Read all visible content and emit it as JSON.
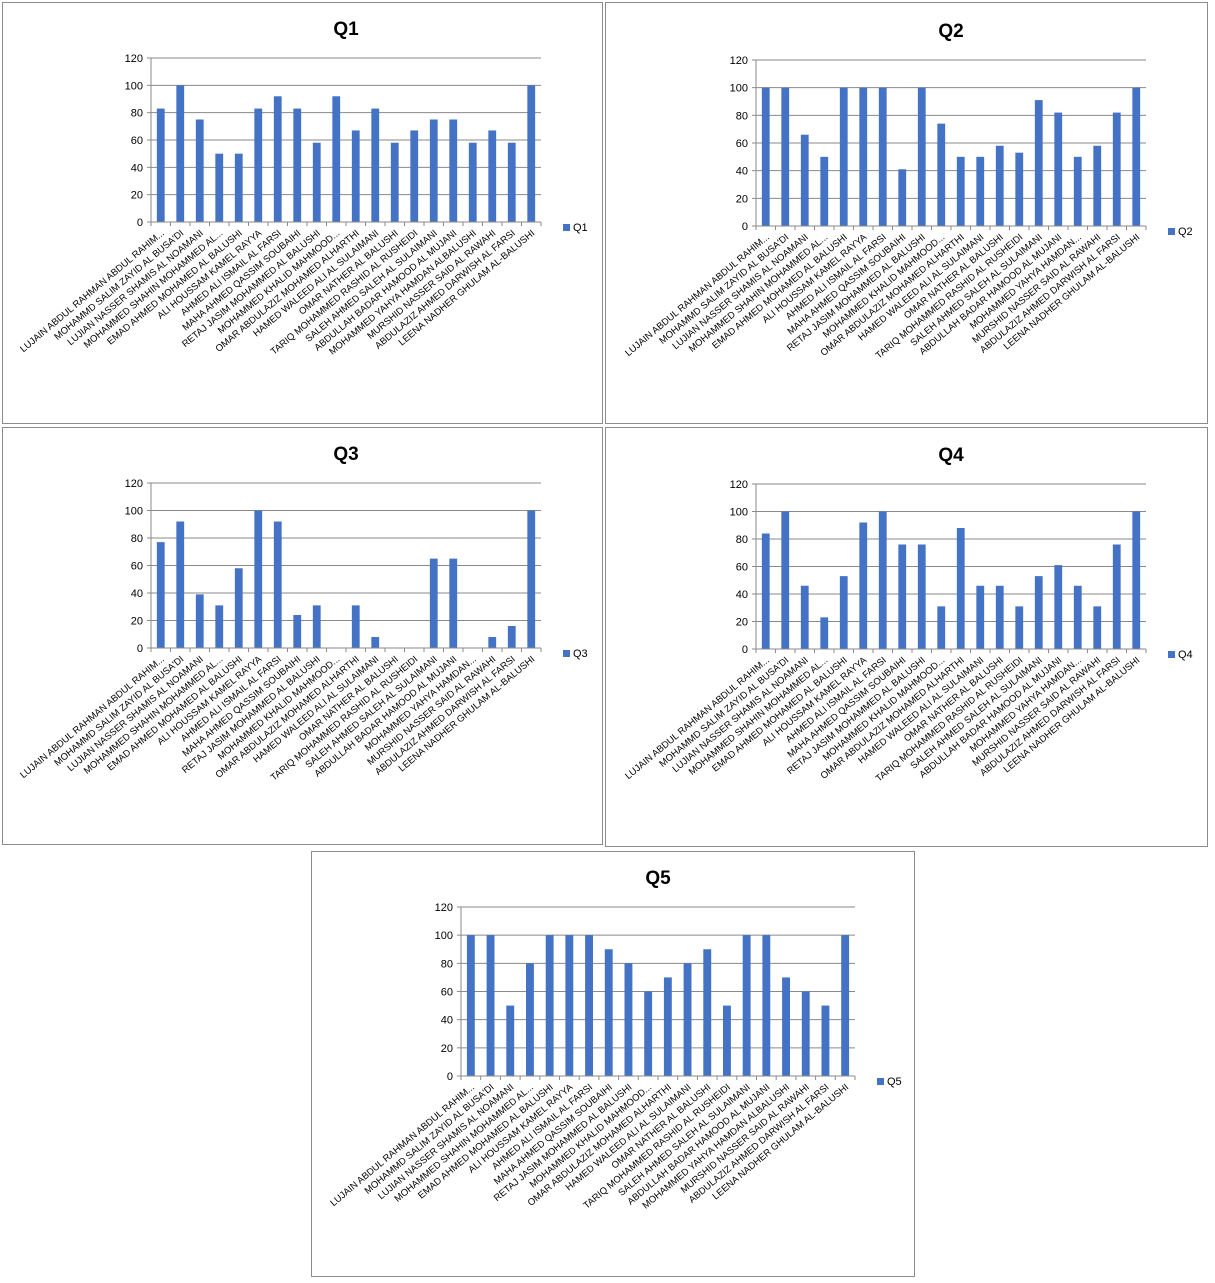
{
  "chart_data": [
    {
      "type": "bar",
      "title": "Q1",
      "categories": [
        "LUJAIN ABDUL RAHMAN ABDUL RAHIM...",
        "MOHAMMD SALIM ZAYID AL BUSA'DI",
        "LUJIAN NASSER SHAMIS AL NOAMANI",
        "MOHAMMED SHAHIN MOHAMMED AL...",
        "EMAD AHMED MOHAMED AL BALUSHI",
        "ALI HOUSSAM KAMEL RAYYA",
        "AHMED ALI ISMAIL AL FARSI",
        "MAHA AHMED QASSIM SOUBAIHI",
        "RETAJ JASIM MOHAMMED AL BALUSHI",
        "MOHAMMED KHALID MAHMOOD...",
        "OMAR ABDULAZIZ MOHAMED ALHARTHI",
        "HAMED WALEED ALI AL SULAIMANI",
        "OMAR NATHER AL BALUSHI",
        "TARIQ MOHAMMED RASHID AL RUSHEIDI",
        "SALEH AHMED SALEH AL SULAIMANI",
        "ABDULLAH BADAR HAMOOD AL MUJANI",
        "MOHAMMED YAHYA HAMDAN ALBALUSHI",
        "MURSHID NASSER SAID AL RAWAHI",
        "ABDULAZIZ AHMED DARWISH AL FARSI",
        "LEENA NADHER GHULAM AL-BALUSHI"
      ],
      "series": [
        {
          "name": "Q1",
          "values": [
            83,
            100,
            75,
            50,
            50,
            83,
            92,
            83,
            58,
            92,
            67,
            83,
            58,
            67,
            75,
            75,
            58,
            67,
            58,
            100
          ]
        }
      ],
      "ylim": [
        0,
        120
      ],
      "yticks": [
        0,
        20,
        40,
        60,
        80,
        100,
        120
      ],
      "grid": true,
      "legend": "right",
      "color": "#4472C4"
    },
    {
      "type": "bar",
      "title": "Q2",
      "categories": [
        "LUJAIN ABDUL RAHMAN ABDUL RAHIM...",
        "MOHAMMD SALIM ZAYID AL BUSA'DI",
        "LUJIAN NASSER SHAMIS AL NOAMANI",
        "MOHAMMED SHAHIN MOHAMMED AL...",
        "EMAD AHMED MOHAMED AL BALUSHI",
        "ALI HOUSSAM KAMEL RAYYA",
        "AHMED ALI ISMAIL AL FARSI",
        "MAHA AHMED QASSIM SOUBAIHI",
        "RETAJ JASIM MOHAMMED AL BALUSHI",
        "MOHAMMED KHALID MAHMOOD...",
        "OMAR ABDULAZIZ MOHAMED ALHARTHI",
        "HAMED WALEED ALI AL SULAIMANI",
        "OMAR NATHER AL BALUSHI",
        "TARIQ MOHAMMED RASHID AL RUSHEIDI",
        "SALEH AHMED SALEH AL SULAIMANI",
        "ABDULLAH BADAR HAMOOD AL MUJANI",
        "MOHAMMED YAHYA HAMDAN...",
        "MURSHID NASSER SAID AL RAWAHI",
        "ABDULAZIZ AHMED DARWISH AL FARSI",
        "LEENA NADHER GHULAM AL-BALUSHI"
      ],
      "series": [
        {
          "name": "Q2",
          "values": [
            100,
            100,
            66,
            50,
            100,
            100,
            100,
            41,
            100,
            74,
            50,
            50,
            58,
            53,
            91,
            82,
            50,
            58,
            82,
            100
          ]
        }
      ],
      "ylim": [
        0,
        120
      ],
      "yticks": [
        0,
        20,
        40,
        60,
        80,
        100,
        120
      ],
      "grid": true,
      "legend": "right",
      "color": "#4472C4"
    },
    {
      "type": "bar",
      "title": "Q3",
      "categories": [
        "LUJAIN ABDUL RAHMAN ABDUL RAHIM...",
        "MOHAMMD SALIM ZAYID AL BUSA'DI",
        "LUJIAN NASSER SHAMIS AL NOAMANI",
        "MOHAMMED SHAHIN MOHAMMED AL...",
        "EMAD AHMED MOHAMED AL BALUSHI",
        "ALI HOUSSAM KAMEL RAYYA",
        "AHMED ALI ISMAIL AL FARSI",
        "MAHA AHMED QASSIM SOUBAIHI",
        "RETAJ JASIM MOHAMMED AL BALUSHI",
        "MOHAMMED KHALID MAHMOOD...",
        "OMAR ABDULAZIZ MOHAMED ALHARTHI",
        "HAMED WALEED ALI AL SULAIMANI",
        "OMAR NATHER AL BALUSHI",
        "TARIQ MOHAMMED RASHID AL RUSHEIDI",
        "SALEH AHMED SALEH AL SULAIMANI",
        "ABDULLAH BADAR HAMOOD AL MUJANI",
        "MOHAMMED YAHYA HAMDAN...",
        "MURSHID NASSER SAID AL RAWAHI",
        "ABDULAZIZ AHMED DARWISH AL FARSI",
        "LEENA NADHER GHULAM AL-BALUSHI"
      ],
      "series": [
        {
          "name": "Q3",
          "values": [
            77,
            92,
            39,
            31,
            58,
            100,
            92,
            24,
            31,
            0,
            31,
            8,
            0,
            0,
            65,
            65,
            0,
            8,
            16,
            100
          ]
        }
      ],
      "ylim": [
        0,
        120
      ],
      "yticks": [
        0,
        20,
        40,
        60,
        80,
        100,
        120
      ],
      "grid": true,
      "legend": "right",
      "color": "#4472C4"
    },
    {
      "type": "bar",
      "title": "Q4",
      "categories": [
        "LUJAIN ABDUL RAHMAN ABDUL RAHIM...",
        "MOHAMMD SALIM ZAYID AL BUSA'DI",
        "LUJIAN NASSER SHAMIS AL NOAMANI",
        "MOHAMMED SHAHIN MOHAMMED AL...",
        "EMAD AHMED MOHAMED AL BALUSHI",
        "ALI HOUSSAM KAMEL RAYYA",
        "AHMED ALI ISMAIL AL FARSI",
        "MAHA AHMED QASSIM SOUBAIHI",
        "RETAJ JASIM MOHAMMED AL BALUSHI",
        "MOHAMMED KHALID MAHMOOD...",
        "OMAR ABDULAZIZ MOHAMED ALHARTHI",
        "HAMED WALEED ALI AL SULAIMANI",
        "OMAR NATHER AL BALUSHI",
        "TARIQ MOHAMMED RASHID AL RUSHEIDI",
        "SALEH AHMED SALEH AL SULAIMANI",
        "ABDULLAH BADAR HAMOOD AL MUJANI",
        "MOHAMMED YAHYA HAMDAN...",
        "MURSHID NASSER SAID AL RAWAHI",
        "ABDULAZIZ AHMED DARWISH AL FARSI",
        "LEENA NADHER GHULAM AL-BALUSHI"
      ],
      "series": [
        {
          "name": "Q4",
          "values": [
            84,
            100,
            46,
            23,
            53,
            92,
            100,
            76,
            76,
            31,
            88,
            46,
            46,
            31,
            53,
            61,
            46,
            31,
            76,
            100
          ]
        }
      ],
      "ylim": [
        0,
        120
      ],
      "yticks": [
        0,
        20,
        40,
        60,
        80,
        100,
        120
      ],
      "grid": true,
      "legend": "right",
      "color": "#4472C4"
    },
    {
      "type": "bar",
      "title": "Q5",
      "categories": [
        "LUJAIN ABDUL RAHMAN ABDUL RAHIM...",
        "MOHAMMD SALIM ZAYID AL BUSA'DI",
        "LUJIAN NASSER SHAMIS AL NOAMANI",
        "MOHAMMED SHAHIN MOHAMMED AL...",
        "EMAD AHMED MOHAMED AL BALUSHI",
        "ALI HOUSSAM KAMEL RAYYA",
        "AHMED ALI ISMAIL AL FARSI",
        "MAHA AHMED QASSIM SOUBAIHI",
        "RETAJ JASIM MOHAMMED AL BALUSHI",
        "MOHAMMED KHALID MAHMOOD...",
        "OMAR ABDULAZIZ MOHAMED ALHARTHI",
        "HAMED WALEED ALI AL SULAIMANI",
        "OMAR NATHER AL BALUSHI",
        "TARIQ MOHAMMED RASHID AL RUSHEIDI",
        "SALEH AHMED SALEH AL SULAIMANI",
        "ABDULLAH BADAR HAMOOD AL MUJANI",
        "MOHAMMED YAHYA HAMDAN ALBALUSHI",
        "MURSHID NASSER SAID AL RAWAHI",
        "ABDULAZIZ AHMED DARWISH AL FARSI",
        "LEENA NADHER GHULAM AL-BALUSHI"
      ],
      "series": [
        {
          "name": "Q5",
          "values": [
            100,
            100,
            50,
            80,
            100,
            100,
            100,
            90,
            80,
            60,
            70,
            80,
            90,
            50,
            100,
            100,
            70,
            60,
            50,
            100
          ]
        }
      ],
      "ylim": [
        0,
        120
      ],
      "yticks": [
        0,
        20,
        40,
        60,
        80,
        100,
        120
      ],
      "grid": true,
      "legend": "right",
      "color": "#4472C4"
    }
  ]
}
